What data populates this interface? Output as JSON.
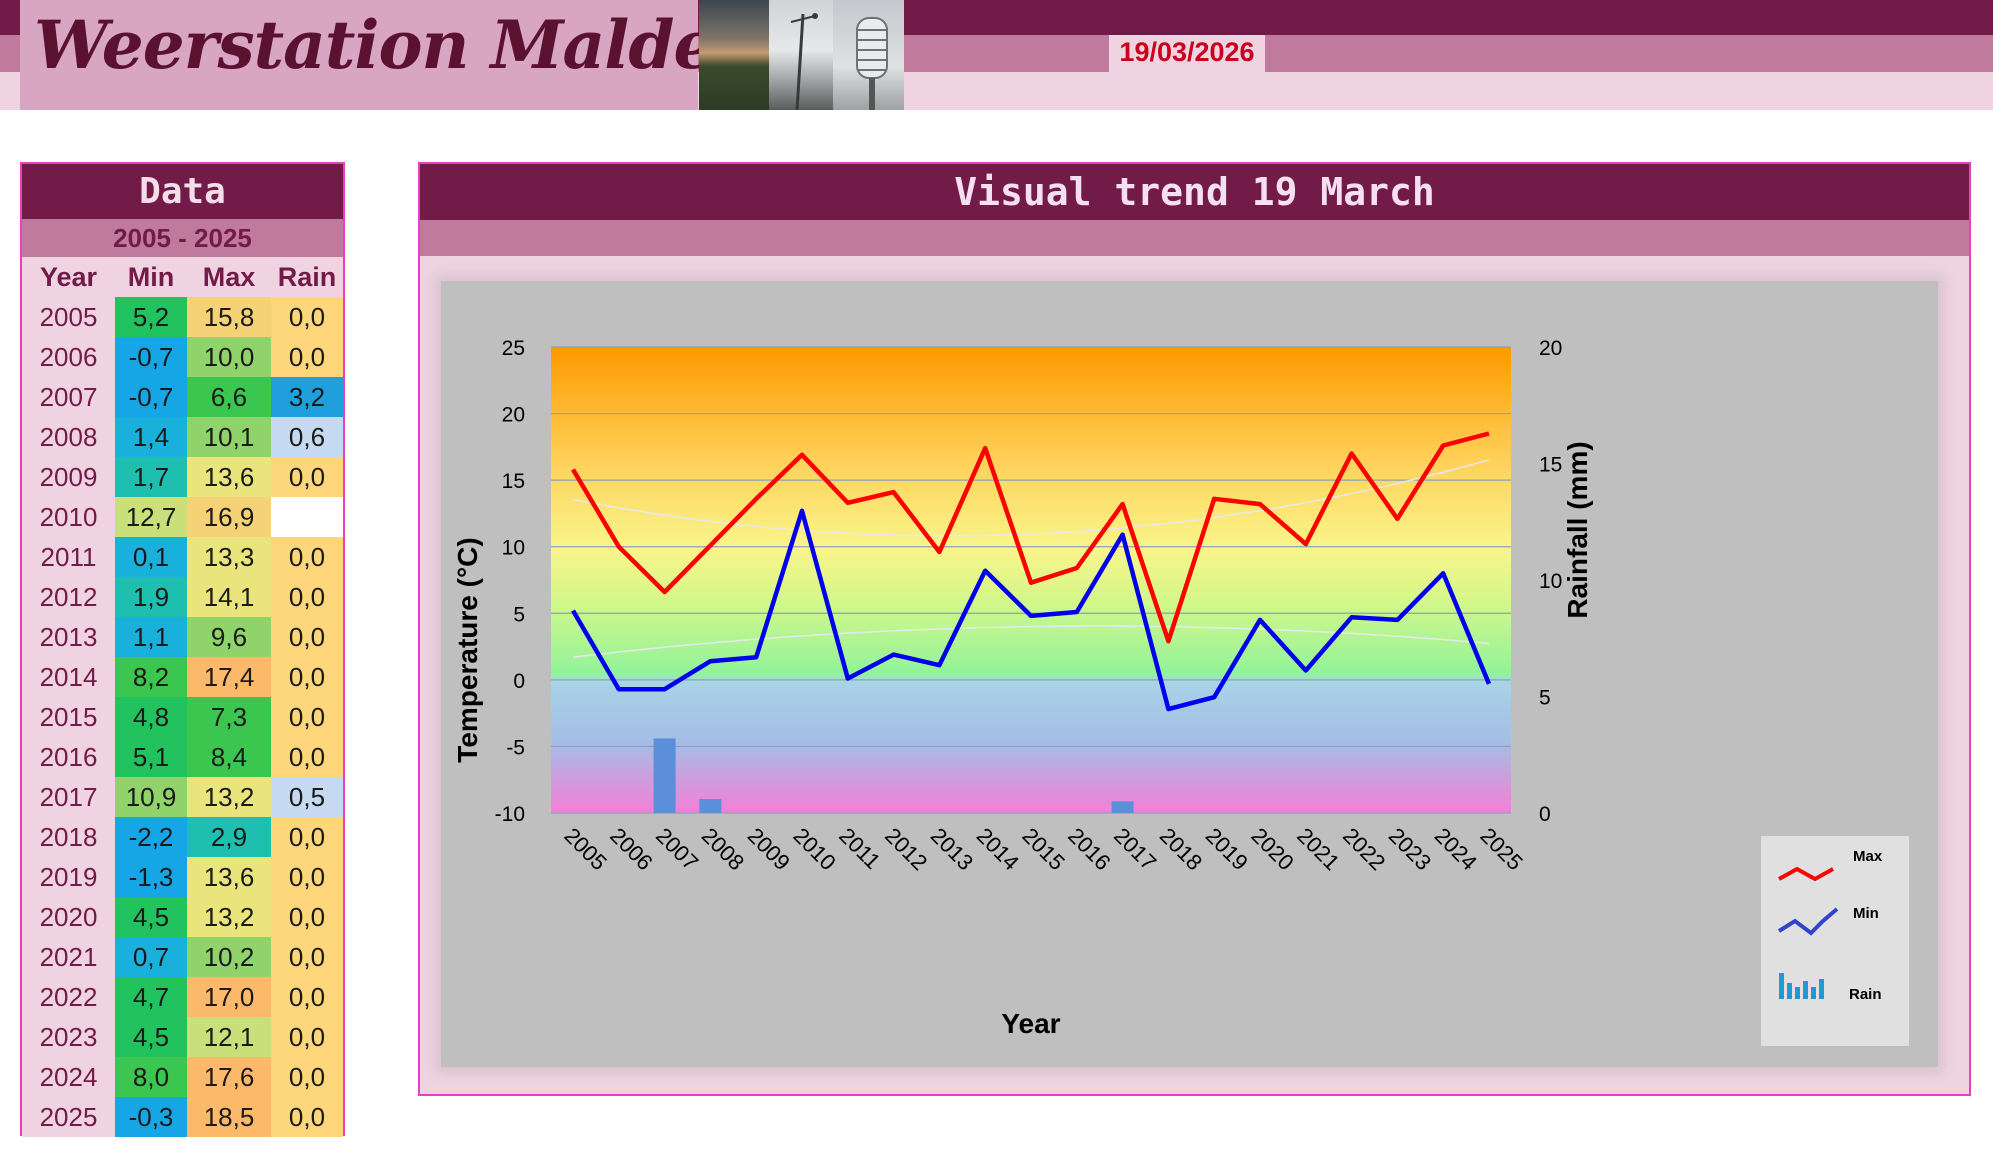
{
  "header": {
    "site_title": "Weerstation Malderen",
    "date": "19/03/2026"
  },
  "table": {
    "title": "Data",
    "range": "2005 - 2025",
    "headers": [
      "Year",
      "Min",
      "Max",
      "Rain"
    ],
    "rows": [
      {
        "year": "2005",
        "min": "5,2",
        "max": "15,8",
        "rain": "0,0"
      },
      {
        "year": "2006",
        "min": "-0,7",
        "max": "10,0",
        "rain": "0,0"
      },
      {
        "year": "2007",
        "min": "-0,7",
        "max": "6,6",
        "rain": "3,2"
      },
      {
        "year": "2008",
        "min": "1,4",
        "max": "10,1",
        "rain": "0,6"
      },
      {
        "year": "2009",
        "min": "1,7",
        "max": "13,6",
        "rain": "0,0"
      },
      {
        "year": "2010",
        "min": "12,7",
        "max": "16,9",
        "rain": ""
      },
      {
        "year": "2011",
        "min": "0,1",
        "max": "13,3",
        "rain": "0,0"
      },
      {
        "year": "2012",
        "min": "1,9",
        "max": "14,1",
        "rain": "0,0"
      },
      {
        "year": "2013",
        "min": "1,1",
        "max": "9,6",
        "rain": "0,0"
      },
      {
        "year": "2014",
        "min": "8,2",
        "max": "17,4",
        "rain": "0,0"
      },
      {
        "year": "2015",
        "min": "4,8",
        "max": "7,3",
        "rain": "0,0"
      },
      {
        "year": "2016",
        "min": "5,1",
        "max": "8,4",
        "rain": "0,0"
      },
      {
        "year": "2017",
        "min": "10,9",
        "max": "13,2",
        "rain": "0,5"
      },
      {
        "year": "2018",
        "min": "-2,2",
        "max": "2,9",
        "rain": "0,0"
      },
      {
        "year": "2019",
        "min": "-1,3",
        "max": "13,6",
        "rain": "0,0"
      },
      {
        "year": "2020",
        "min": "4,5",
        "max": "13,2",
        "rain": "0,0"
      },
      {
        "year": "2021",
        "min": "0,7",
        "max": "10,2",
        "rain": "0,0"
      },
      {
        "year": "2022",
        "min": "4,7",
        "max": "17,0",
        "rain": "0,0"
      },
      {
        "year": "2023",
        "min": "4,5",
        "max": "12,1",
        "rain": "0,0"
      },
      {
        "year": "2024",
        "min": "8,0",
        "max": "17,6",
        "rain": "0,0"
      },
      {
        "year": "2025",
        "min": "-0,3",
        "max": "18,5",
        "rain": "0,0"
      }
    ]
  },
  "colors": {
    "brand_dark": "#721b48",
    "brand_mid": "#c07a9e",
    "brand_light": "#efd3e1",
    "max_line": "#ff0000",
    "min_line": "#0000ee",
    "rain_bars": "#5b8fd9",
    "date_text": "#c8001c"
  },
  "chart_data": {
    "type": "line",
    "title": "Visual trend 19 March",
    "xlabel": "Year",
    "ylabel": "Temperature (°C)",
    "y2label": "Rainfall (mm)",
    "ylim": [
      -10,
      25
    ],
    "y2lim": [
      0,
      20
    ],
    "yticks": [
      -10,
      -5,
      0,
      5,
      10,
      15,
      20,
      25
    ],
    "y2ticks": [
      0,
      5,
      10,
      15,
      20
    ],
    "grid": true,
    "legend_position": "right",
    "categories": [
      "2005",
      "2006",
      "2007",
      "2008",
      "2009",
      "2010",
      "2011",
      "2012",
      "2013",
      "2014",
      "2015",
      "2016",
      "2017",
      "2018",
      "2019",
      "2020",
      "2021",
      "2022",
      "2023",
      "2024",
      "2025"
    ],
    "series": [
      {
        "name": "Max",
        "type": "line",
        "axis": "left",
        "values": [
          15.8,
          10.0,
          6.6,
          10.1,
          13.6,
          16.9,
          13.3,
          14.1,
          9.6,
          17.4,
          7.3,
          8.4,
          13.2,
          2.9,
          13.6,
          13.2,
          10.2,
          17.0,
          12.1,
          17.6,
          18.5
        ]
      },
      {
        "name": "Min",
        "type": "line",
        "axis": "left",
        "values": [
          5.2,
          -0.7,
          -0.7,
          1.4,
          1.7,
          12.7,
          0.1,
          1.9,
          1.1,
          8.2,
          4.8,
          5.1,
          10.9,
          -2.2,
          -1.3,
          4.5,
          0.7,
          4.7,
          4.5,
          8.0,
          -0.3
        ]
      },
      {
        "name": "Rain",
        "type": "bar",
        "axis": "right",
        "values": [
          0.0,
          0.0,
          3.2,
          0.6,
          0.0,
          null,
          0.0,
          0.0,
          0.0,
          0.0,
          0.0,
          0.0,
          0.5,
          0.0,
          0.0,
          0.0,
          0.0,
          0.0,
          0.0,
          0.0,
          0.0
        ]
      }
    ]
  }
}
